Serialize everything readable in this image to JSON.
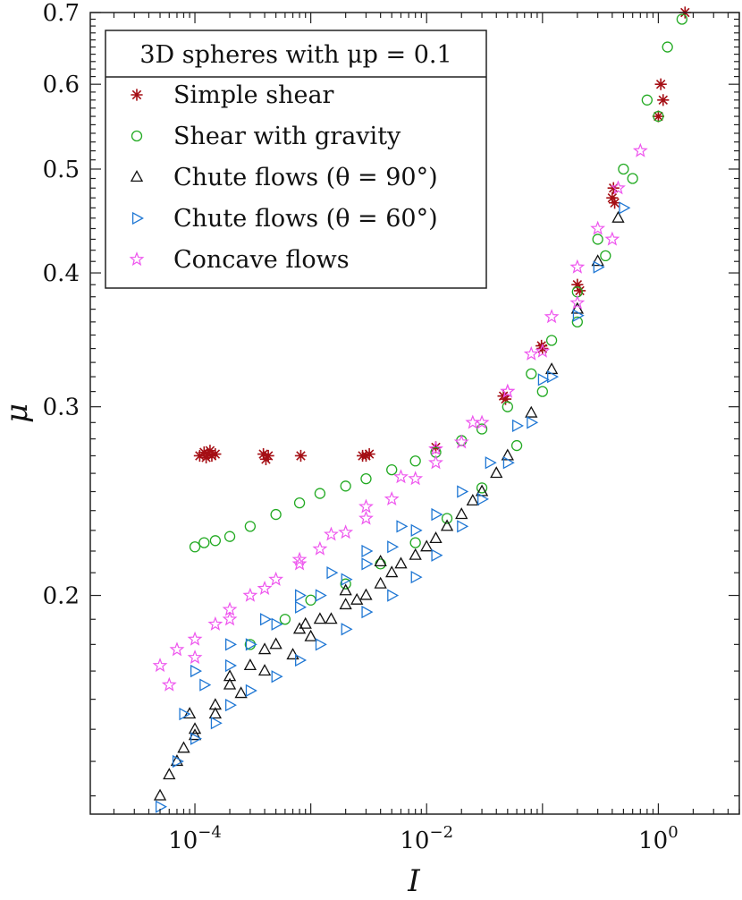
{
  "chart_data": {
    "type": "scatter",
    "title": "",
    "xlabel": "I",
    "ylabel": "μ",
    "xscale": "log",
    "yscale": "log",
    "xlim": [
      1.25e-05,
      5
    ],
    "ylim": [
      0.125,
      0.7
    ],
    "xticks": [
      {
        "value": 0.0001,
        "base": "10",
        "exp": "−4"
      },
      {
        "value": 0.01,
        "base": "10",
        "exp": "−2"
      },
      {
        "value": 1,
        "base": "10",
        "exp": "0"
      }
    ],
    "yticks": [
      {
        "value": 0.2,
        "label": "0.2"
      },
      {
        "value": 0.3,
        "label": "0.3"
      },
      {
        "value": 0.4,
        "label": "0.4"
      },
      {
        "value": 0.5,
        "label": "0.5"
      },
      {
        "value": 0.6,
        "label": "0.6"
      },
      {
        "value": 0.7,
        "label": "0.7"
      }
    ],
    "legend_title": "3D spheres with μp = 0.1",
    "legend_position": "top-left",
    "series": [
      {
        "name": "Simple shear",
        "color": "#a50f15",
        "marker": "asterisk",
        "x": [
          0.00011,
          0.00012,
          0.00013,
          0.00014,
          0.00015,
          0.000125,
          0.000135,
          0.00039,
          0.00041,
          0.00043,
          0.00082,
          0.0028,
          0.003,
          0.0032,
          0.012,
          0.046,
          0.048,
          0.098,
          0.1,
          0.2,
          0.21,
          0.4,
          0.41,
          0.42,
          1.0,
          1.05,
          1.1,
          1.7
        ],
        "y": [
          0.27,
          0.272,
          0.271,
          0.27,
          0.271,
          0.269,
          0.273,
          0.271,
          0.268,
          0.27,
          0.27,
          0.27,
          0.27,
          0.271,
          0.275,
          0.307,
          0.305,
          0.342,
          0.34,
          0.39,
          0.385,
          0.47,
          0.48,
          0.465,
          0.56,
          0.6,
          0.58,
          0.7
        ]
      },
      {
        "name": "Shear with gravity",
        "color": "#22aa22",
        "marker": "circle",
        "x": [
          0.0001,
          0.00012,
          0.00015,
          0.0002,
          0.0003,
          0.0005,
          0.0008,
          0.0012,
          0.002,
          0.003,
          0.005,
          0.008,
          0.012,
          0.02,
          0.03,
          0.05,
          0.08,
          0.12,
          0.2,
          0.3,
          0.5,
          0.8,
          1.2,
          1.6,
          0.0003,
          0.0006,
          0.001,
          0.002,
          0.004,
          0.008,
          0.015,
          0.03,
          0.06,
          0.1,
          0.2,
          0.35,
          0.6,
          1.0
        ],
        "y": [
          0.222,
          0.224,
          0.225,
          0.227,
          0.232,
          0.238,
          0.244,
          0.249,
          0.253,
          0.257,
          0.262,
          0.267,
          0.272,
          0.279,
          0.286,
          0.3,
          0.322,
          0.346,
          0.384,
          0.43,
          0.5,
          0.58,
          0.65,
          0.69,
          0.18,
          0.19,
          0.198,
          0.205,
          0.214,
          0.224,
          0.236,
          0.252,
          0.276,
          0.31,
          0.36,
          0.415,
          0.49,
          0.56
        ]
      },
      {
        "name": "Chute flows (θ = 90°)",
        "color": "#111111",
        "marker": "triangle",
        "x": [
          5e-05,
          6e-05,
          8e-05,
          0.0001,
          0.00015,
          0.0002,
          0.0003,
          0.0005,
          0.0008,
          0.0012,
          0.002,
          0.003,
          0.005,
          0.008,
          0.012,
          0.02,
          0.03,
          0.05,
          0.08,
          0.12,
          0.2,
          0.3,
          0.45,
          7e-05,
          0.0001,
          0.00015,
          0.00025,
          0.0004,
          0.0007,
          0.001,
          0.0015,
          0.0025,
          0.004,
          0.006,
          0.01,
          0.015,
          0.025,
          0.04,
          9e-05,
          0.0002,
          0.0004,
          0.0009,
          0.002,
          0.004
        ],
        "y": [
          0.13,
          0.136,
          0.144,
          0.15,
          0.158,
          0.165,
          0.172,
          0.18,
          0.186,
          0.19,
          0.196,
          0.2,
          0.21,
          0.218,
          0.226,
          0.238,
          0.25,
          0.27,
          0.296,
          0.325,
          0.37,
          0.41,
          0.45,
          0.14,
          0.148,
          0.155,
          0.162,
          0.17,
          0.176,
          0.183,
          0.19,
          0.198,
          0.205,
          0.214,
          0.222,
          0.232,
          0.245,
          0.26,
          0.155,
          0.168,
          0.178,
          0.188,
          0.202,
          0.215
        ]
      },
      {
        "name": "Chute flows (θ = 60°)",
        "color": "#1f77d4",
        "marker": "triangle-right",
        "x": [
          5e-05,
          7e-05,
          0.0001,
          0.00015,
          0.0002,
          0.0003,
          0.0005,
          0.0008,
          0.0012,
          0.002,
          0.003,
          0.005,
          0.008,
          0.012,
          0.02,
          0.03,
          0.05,
          0.08,
          0.12,
          0.2,
          0.3,
          0.5,
          8e-05,
          0.00012,
          0.0002,
          0.0003,
          0.0005,
          0.0008,
          0.0012,
          0.002,
          0.003,
          0.005,
          0.008,
          0.012,
          0.02,
          0.035,
          0.06,
          0.1,
          0.0001,
          0.0002,
          0.0004,
          0.0008,
          0.0015,
          0.003,
          0.006
        ],
        "y": [
          0.127,
          0.14,
          0.147,
          0.152,
          0.158,
          0.163,
          0.168,
          0.174,
          0.18,
          0.186,
          0.193,
          0.2,
          0.208,
          0.218,
          0.232,
          0.246,
          0.266,
          0.29,
          0.32,
          0.365,
          0.405,
          0.46,
          0.155,
          0.165,
          0.172,
          0.18,
          0.188,
          0.195,
          0.2,
          0.207,
          0.214,
          0.222,
          0.23,
          0.238,
          0.25,
          0.266,
          0.288,
          0.318,
          0.17,
          0.18,
          0.19,
          0.2,
          0.21,
          0.22,
          0.232
        ]
      },
      {
        "name": "Concave flows",
        "color": "#ee55ee",
        "marker": "star",
        "x": [
          5e-05,
          7e-05,
          0.0001,
          0.00015,
          0.0002,
          0.0003,
          0.0005,
          0.0008,
          0.0012,
          0.002,
          0.003,
          0.005,
          0.008,
          0.012,
          0.02,
          0.03,
          0.05,
          0.08,
          0.12,
          0.2,
          0.3,
          0.45,
          0.7,
          6e-05,
          0.0001,
          0.0002,
          0.0004,
          0.0008,
          0.0015,
          0.003,
          0.006,
          0.012,
          0.025,
          0.05,
          0.1,
          0.2,
          0.4
        ],
        "y": [
          0.172,
          0.178,
          0.182,
          0.188,
          0.194,
          0.2,
          0.207,
          0.214,
          0.221,
          0.229,
          0.236,
          0.246,
          0.257,
          0.266,
          0.278,
          0.29,
          0.31,
          0.336,
          0.364,
          0.405,
          0.44,
          0.48,
          0.52,
          0.165,
          0.175,
          0.19,
          0.203,
          0.216,
          0.228,
          0.242,
          0.258,
          0.274,
          0.29,
          0.31,
          0.338,
          0.375,
          0.43
        ]
      }
    ]
  }
}
